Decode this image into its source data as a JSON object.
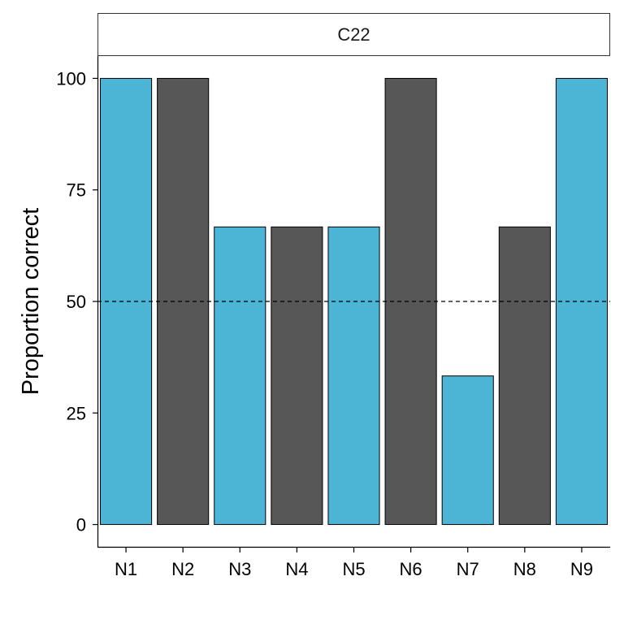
{
  "chart_data": {
    "type": "bar",
    "facet_label": "C22",
    "categories": [
      "N1",
      "N2",
      "N3",
      "N4",
      "N5",
      "N6",
      "N7",
      "N8",
      "N9"
    ],
    "values": [
      100,
      100,
      66.7,
      66.7,
      66.7,
      100,
      33.3,
      66.7,
      100
    ],
    "bar_colors": [
      "#4cb5d6",
      "#575757",
      "#4cb5d6",
      "#575757",
      "#4cb5d6",
      "#575757",
      "#4cb5d6",
      "#575757",
      "#4cb5d6"
    ],
    "ylabel": "Proportion correct",
    "ylim": [
      -5,
      105
    ],
    "yticks": [
      0,
      25,
      50,
      75,
      100
    ],
    "reference_line": 50,
    "grid": false
  }
}
